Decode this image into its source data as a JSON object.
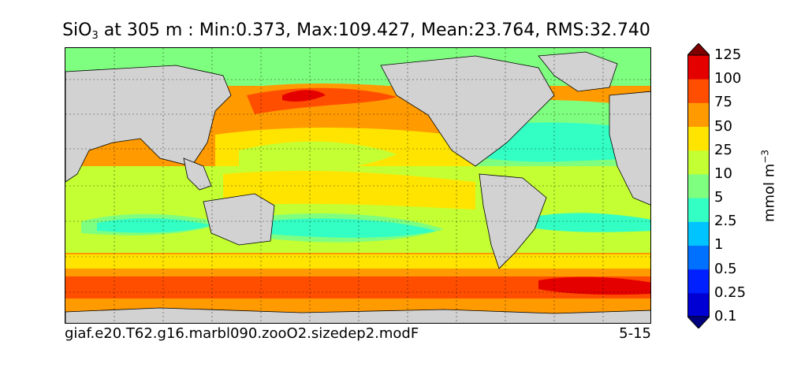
{
  "title": {
    "variable": "SiO",
    "subscript": "3",
    "rest": " at 305 m : Min:0.373, Max:109.427, Mean:23.764, RMS:32.740"
  },
  "footer": {
    "case_name": "giaf.e20.T62.g16.marbl090.zooO2.sizedep2.modF",
    "years": "5-15"
  },
  "colorbar": {
    "units_base": "mmol m",
    "units_exp": "−3",
    "extend": "both",
    "levels": [
      "0.1",
      "0.25",
      "0.5",
      "1",
      "2.5",
      "5",
      "10",
      "25",
      "50",
      "75",
      "100",
      "125"
    ],
    "colors": [
      "#00007f",
      "#0000d4",
      "#0020ff",
      "#0070ff",
      "#00c4ff",
      "#33ffc4",
      "#7fff7f",
      "#c4ff33",
      "#ffe400",
      "#ff9a00",
      "#ff4e00",
      "#e50000",
      "#7f0000"
    ]
  },
  "map": {
    "land_color": "#d2d2d2",
    "missing_color": "#ffffff",
    "gridlines": "dotted",
    "region_colors": {
      "southern_ocean_high": "#ff4e00",
      "southern_ocean_max": "#e50000",
      "north_pacific_high": "#ff4e00",
      "north_pacific_max": "#e50000",
      "north_pacific": "#ff9a00",
      "equatorial_pacific": "#ffe400",
      "indian": "#c4ff33",
      "subtropical_south": "#7fff7f",
      "gyre_low": "#33ffc4",
      "arctic": "#7fff7f"
    }
  }
}
